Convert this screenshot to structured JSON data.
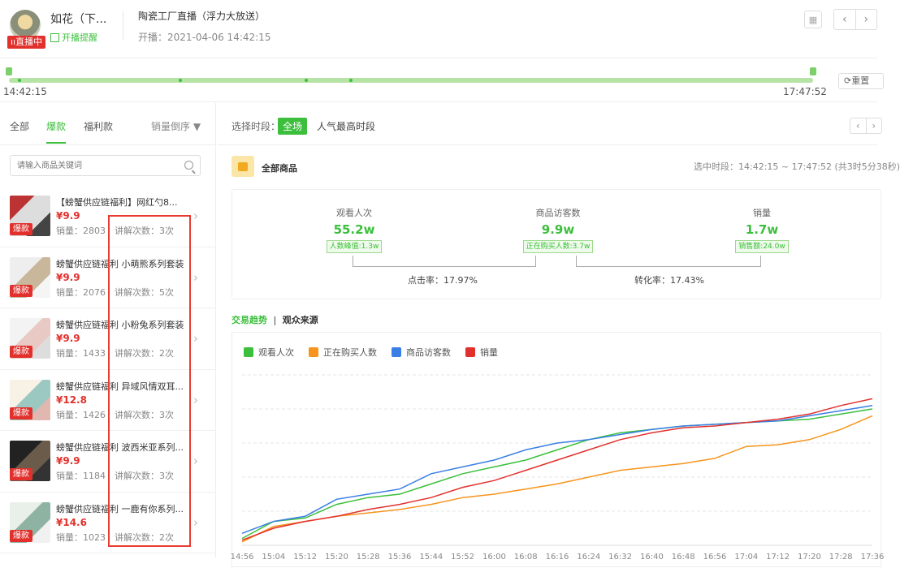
{
  "header": {
    "anchor_name": "如花（下...",
    "live_badge": "直播中",
    "remind": "开播提醒",
    "room_title": "陶瓷工厂直播（浮力大放送）",
    "start_time": "开播：2021-04-06 14:42:15"
  },
  "timeline": {
    "start": "14:42:15",
    "end": "17:47:52",
    "reset": "重置"
  },
  "left": {
    "tabs": [
      "全部",
      "爆款",
      "福利款"
    ],
    "sort": "销量倒序 ▼",
    "search_placeholder": "请输入商品关键词",
    "products": [
      {
        "title": "【螃蟹供应链福利】网红勺8...",
        "price": "¥9.9",
        "sales": "销量：2803",
        "explain": "讲解次数：3次",
        "tag": "爆款"
      },
      {
        "title": "螃蟹供应链福利 小萌熊系列套装",
        "price": "¥9.9",
        "sales": "销量：2076",
        "explain": "讲解次数：5次",
        "tag": "爆款"
      },
      {
        "title": "螃蟹供应链福利 小粉兔系列套装",
        "price": "¥9.9",
        "sales": "销量：1433",
        "explain": "讲解次数：2次",
        "tag": "爆款"
      },
      {
        "title": "螃蟹供应链福利 异域风情双耳...",
        "price": "¥12.8",
        "sales": "销量：1426",
        "explain": "讲解次数：3次",
        "tag": "爆款"
      },
      {
        "title": "螃蟹供应链福利 波西米亚系列...",
        "price": "¥9.9",
        "sales": "销量：1184",
        "explain": "讲解次数：3次",
        "tag": "爆款"
      },
      {
        "title": "螃蟹供应链福利 一鹿有你系列...",
        "price": "¥14.6",
        "sales": "销量：1023",
        "explain": "讲解次数：2次",
        "tag": "爆款"
      }
    ]
  },
  "right": {
    "period_label": "选择时段：",
    "period_all": "全场",
    "period_peak": "人气最高时段",
    "all_goods": "全部商品",
    "selected_range": "选中时段：14:42:15 ~ 17:47:52 (共3时5分38秒)",
    "stats": {
      "views": {
        "label": "观看人次",
        "value": "55.2w",
        "sub": "人数峰值:1.3w"
      },
      "visitors": {
        "label": "商品访客数",
        "value": "9.9w",
        "sub": "正在购买人数:3.7w"
      },
      "sales": {
        "label": "销量",
        "value": "1.7w",
        "sub": "销售额:24.0w"
      }
    },
    "click_rate": "点击率：17.97%",
    "conversion_rate": "转化率：17.43%",
    "trend_tab": "交易趋势",
    "trend_sep": "|",
    "audience_tab": "观众来源"
  },
  "colors": {
    "green": "#3cbf3c",
    "orange": "#f7941d",
    "blue": "#3a7ee6",
    "red": "#e2312d"
  },
  "chart_data": {
    "type": "line",
    "x": [
      "14:56",
      "15:04",
      "15:12",
      "15:20",
      "15:28",
      "15:36",
      "15:44",
      "15:52",
      "16:00",
      "16:08",
      "16:16",
      "16:24",
      "16:32",
      "16:40",
      "16:48",
      "16:56",
      "17:04",
      "17:12",
      "17:20",
      "17:28",
      "17:36"
    ],
    "series": [
      {
        "name": "观看人次",
        "color": "#3cbf3c",
        "values": [
          4,
          14,
          16,
          24,
          28,
          30,
          36,
          42,
          46,
          50,
          56,
          62,
          66,
          68,
          70,
          71,
          72,
          73,
          74,
          77,
          80
        ]
      },
      {
        "name": "正在购买人数",
        "color": "#f7941d",
        "values": [
          2,
          11,
          14,
          17,
          19,
          21,
          24,
          28,
          30,
          33,
          36,
          40,
          44,
          46,
          48,
          51,
          58,
          59,
          62,
          68,
          76
        ]
      },
      {
        "name": "商品访客数",
        "color": "#3a7ee6",
        "values": [
          7,
          14,
          17,
          27,
          30,
          33,
          42,
          46,
          50,
          56,
          60,
          62,
          65,
          68,
          70,
          71,
          72,
          73,
          76,
          79,
          82
        ]
      },
      {
        "name": "销量",
        "color": "#e2312d",
        "values": [
          3,
          10,
          14,
          17,
          21,
          24,
          28,
          34,
          38,
          44,
          50,
          56,
          62,
          66,
          69,
          70,
          72,
          74,
          77,
          82,
          86
        ]
      }
    ],
    "ylim": [
      0,
      100
    ],
    "grid": true,
    "legend": "top-left"
  }
}
